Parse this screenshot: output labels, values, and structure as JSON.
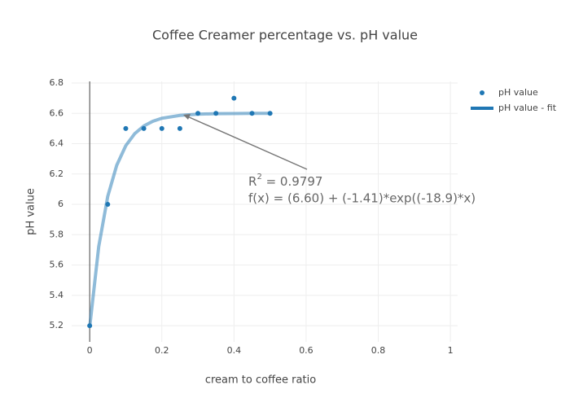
{
  "chart_data": {
    "type": "scatter",
    "title": "Coffee Creamer percentage vs. pH value",
    "x_label": "cream to coffee ratio",
    "y_label": "pH value",
    "xlim": [
      -0.05,
      1.02
    ],
    "xticks": [
      0,
      0.2,
      0.4,
      0.6,
      0.8,
      1
    ],
    "ylim": [
      5.093,
      6.811
    ],
    "yticks": [
      5.2,
      5.4,
      5.6,
      5.8,
      6,
      6.2,
      6.4,
      6.6,
      6.8
    ],
    "grid": true,
    "legend": "right",
    "series": [
      {
        "name": "pH value",
        "mode": "markers",
        "color": "#1f77b4",
        "x": [
          0,
          0.05,
          0.1,
          0.15,
          0.2,
          0.25,
          0.3,
          0.35,
          0.4,
          0.45,
          0.5
        ],
        "values": [
          5.2,
          6.0,
          6.5,
          6.5,
          6.5,
          6.5,
          6.6,
          6.6,
          6.7,
          6.6,
          6.6
        ]
      },
      {
        "name": "pH value - fit",
        "mode": "lines",
        "color": "#1f77b4",
        "opacity": 0.5,
        "x": [
          0,
          0.025,
          0.05,
          0.075,
          0.1,
          0.125,
          0.15,
          0.175,
          0.2,
          0.25,
          0.3,
          0.35,
          0.4,
          0.45,
          0.5
        ],
        "values": [
          5.19,
          5.721,
          6.052,
          6.258,
          6.387,
          6.467,
          6.517,
          6.548,
          6.568,
          6.587,
          6.595,
          6.598,
          6.599,
          6.6,
          6.6
        ]
      }
    ],
    "annotation": {
      "r_parts": [
        "R",
        "2",
        " = 0.9797"
      ],
      "formula": "f(x) = (6.60) + (-1.41)*exp((-18.9)*x)"
    }
  }
}
